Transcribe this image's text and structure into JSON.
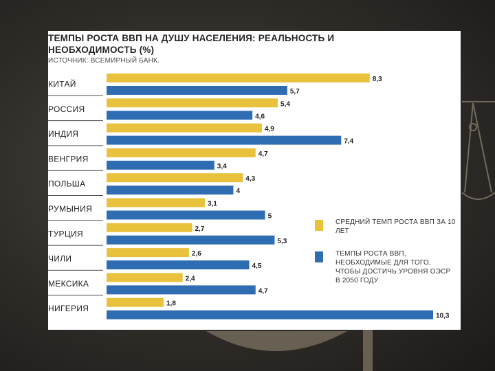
{
  "colors": {
    "reality": "#E8C23C",
    "required": "#2F6DB3",
    "separator": "#4a4a4a"
  },
  "header": {
    "title": "ТЕМПЫ РОСТА ВВП НА ДУШУ НАСЕЛЕНИЯ: РЕАЛЬНОСТЬ И НЕОБХОДИМОСТЬ (%)",
    "source": "ИСТОЧНИК: ВСЕМИРНЫЙ БАНК."
  },
  "chart_data": {
    "type": "bar",
    "orientation": "horizontal",
    "title": "ТЕМПЫ РОСТА ВВП НА ДУШУ НАСЕЛЕНИЯ: РЕАЛЬНОСТЬ И НЕОБХОДИМОСТЬ (%)",
    "categories": [
      "КИТАЙ",
      "РОССИЯ",
      "ИНДИЯ",
      "ВЕНГРИЯ",
      "ПОЛЬША",
      "РУМЫНИЯ",
      "ТУРЦИЯ",
      "ЧИЛИ",
      "МЕКСИКА",
      "НИГЕРИЯ"
    ],
    "series": [
      {
        "name": "СРЕДНИЙ ТЕМП РОСТА ВВП ЗА 10 ЛЕТ",
        "values": [
          8.3,
          5.4,
          4.9,
          4.7,
          4.3,
          3.1,
          2.7,
          2.6,
          2.4,
          1.8
        ],
        "labels": [
          "8,3",
          "5,4",
          "4,9",
          "4,7",
          "4,3",
          "3,1",
          "2,7",
          "2,6",
          "2,4",
          "1,8"
        ]
      },
      {
        "name": "ТЕМПЫ РОСТА ВВП, НЕОБХОДИМЫЕ ДЛЯ ТОГО, ЧТОБЫ ДОСТИЧЬ УРОВНЯ ОЭСР В 2050 ГОДУ",
        "values": [
          5.7,
          4.6,
          7.4,
          3.4,
          4,
          5,
          5.3,
          4.5,
          4.7,
          10.3
        ],
        "labels": [
          "5,7",
          "4,6",
          "7,4",
          "3,4",
          "4",
          "5",
          "5,3",
          "4,5",
          "4,7",
          "10,3"
        ]
      }
    ],
    "xlim": [
      0,
      10.3
    ],
    "grid": false,
    "legend": "right"
  },
  "legend": {
    "items": [
      "СРЕДНИЙ ТЕМП РОСТА ВВП ЗА 10 ЛЕТ",
      "ТЕМПЫ РОСТА ВВП, НЕОБХОДИМЫЕ ДЛЯ ТОГО, ЧТОБЫ ДОСТИЧЬ УРОВНЯ ОЭСР В 2050 ГОДУ"
    ]
  }
}
